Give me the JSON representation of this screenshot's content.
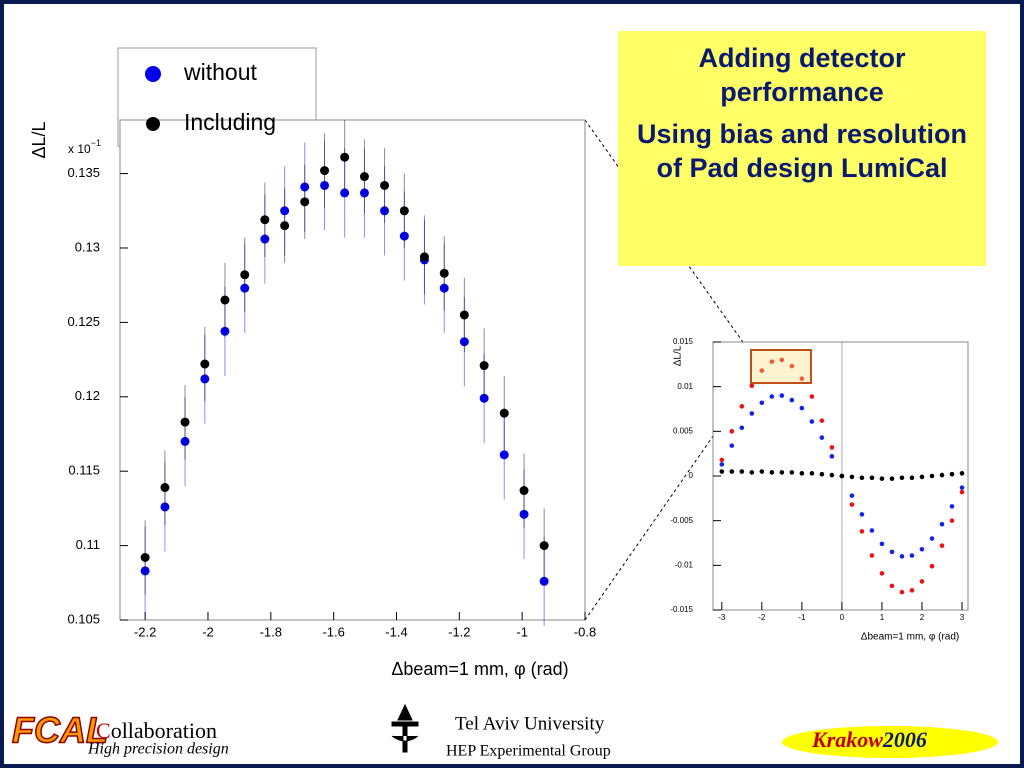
{
  "slide": {
    "box": [
      "Adding detector performance",
      "Using bias and resolution of Pad design LumiCal"
    ],
    "footer": {
      "logo": "FCAL",
      "collab_initial": "C",
      "collab_rest": "ollaboration",
      "tagline": "High precision design",
      "university": "Tel Aviv University",
      "group": "HEP Experimental Group",
      "city": "Krakow",
      "year": "2006"
    }
  },
  "chart_data": [
    {
      "type": "scatter",
      "x_label": "Δbeam=1 mm, φ (rad)",
      "y_label": "ΔL/L",
      "y_multiplier": "x 10",
      "y_multiplier_exp": "−1",
      "xlim": [
        -2.28,
        -0.8
      ],
      "ylim": [
        0.105,
        0.1386
      ],
      "xticks": [
        -2.2,
        -2,
        -1.8,
        -1.6,
        -1.4,
        -1.2,
        -1,
        -0.8
      ],
      "yticks": [
        0.105,
        0.11,
        0.115,
        0.12,
        0.125,
        0.13,
        0.135
      ],
      "x": [
        -2.2,
        -2.137,
        -2.073,
        -2.01,
        -1.946,
        -1.883,
        -1.819,
        -1.756,
        -1.692,
        -1.629,
        -1.565,
        -1.502,
        -1.438,
        -1.375,
        -1.311,
        -1.248,
        -1.184,
        -1.121,
        -1.057,
        -0.994,
        -0.93
      ],
      "series": [
        {
          "name": "without",
          "color": "#0000ee",
          "values": [
            0.1083,
            0.1126,
            0.117,
            0.1212,
            0.1244,
            0.1273,
            0.1306,
            0.1325,
            0.1341,
            0.1342,
            0.1337,
            0.1337,
            0.1325,
            0.1308,
            0.1292,
            0.1273,
            0.1237,
            0.1199,
            0.1161,
            0.1121,
            0.1076
          ],
          "errors": [
            0.003,
            0.003,
            0.003,
            0.003,
            0.003,
            0.003,
            0.003,
            0.003,
            0.003,
            0.003,
            0.003,
            0.003,
            0.003,
            0.003,
            0.003,
            0.003,
            0.003,
            0.003,
            0.003,
            0.003,
            0.003
          ]
        },
        {
          "name": "Including",
          "color": "#000000",
          "values": [
            0.1092,
            0.1139,
            0.1183,
            0.1222,
            0.1265,
            0.1282,
            0.1319,
            0.1315,
            0.1331,
            0.1352,
            0.1361,
            0.1348,
            0.1342,
            0.1325,
            0.1294,
            0.1283,
            0.1255,
            0.1221,
            0.1189,
            0.1137,
            0.11
          ],
          "errors": [
            0.0025,
            0.0025,
            0.0025,
            0.0025,
            0.0025,
            0.0025,
            0.0025,
            0.0025,
            0.0025,
            0.0025,
            0.0025,
            0.0025,
            0.0025,
            0.0025,
            0.0025,
            0.0025,
            0.0025,
            0.0025,
            0.0025,
            0.0025,
            0.0025
          ]
        }
      ]
    },
    {
      "type": "scatter",
      "x_label": "Δbeam=1 mm, φ (rad)",
      "y_label": "ΔL/L",
      "xlim": [
        -3.22,
        3.15
      ],
      "ylim": [
        -0.015,
        0.015
      ],
      "xticks": [
        -3,
        -2,
        -1,
        0,
        1,
        2,
        3
      ],
      "yticks": [
        -0.015,
        -0.01,
        -0.005,
        0,
        0.005,
        0.01,
        0.015
      ],
      "x": [
        -3,
        -2.75,
        -2.5,
        -2.25,
        -2,
        -1.75,
        -1.5,
        -1.25,
        -1,
        -0.75,
        -0.5,
        -0.25,
        0,
        0.25,
        0.5,
        0.75,
        1,
        1.25,
        1.5,
        1.75,
        2,
        2.25,
        2.5,
        2.75,
        3
      ],
      "series": [
        {
          "color": "#ee1111",
          "values": [
            0.0018,
            0.005,
            0.0078,
            0.0101,
            0.0118,
            0.0128,
            0.013,
            0.0123,
            0.0109,
            0.0089,
            0.0062,
            0.0032,
            0,
            -0.0032,
            -0.0062,
            -0.0089,
            -0.0109,
            -0.0123,
            -0.013,
            -0.0128,
            -0.0118,
            -0.0101,
            -0.0078,
            -0.005,
            -0.0018
          ]
        },
        {
          "color": "#1122ee",
          "values": [
            0.0013,
            0.0034,
            0.0054,
            0.007,
            0.0082,
            0.0089,
            0.009,
            0.0085,
            0.0076,
            0.0061,
            0.0043,
            0.0022,
            0,
            -0.0022,
            -0.0043,
            -0.0061,
            -0.0076,
            -0.0085,
            -0.009,
            -0.0089,
            -0.0082,
            -0.007,
            -0.0054,
            -0.0034,
            -0.0013
          ]
        },
        {
          "color": "#000000",
          "values": [
            0.0005,
            0.0005,
            0.0005,
            0.0004,
            0.0005,
            0.0004,
            0.0004,
            0.0004,
            0.0003,
            0.0003,
            0.0002,
            0.0001,
            0,
            -0.0001,
            -0.0002,
            -0.0002,
            -0.0003,
            -0.0003,
            -0.0002,
            -0.0002,
            -0.0001,
            0,
            0.0001,
            0.0002,
            0.0003
          ]
        }
      ]
    }
  ]
}
